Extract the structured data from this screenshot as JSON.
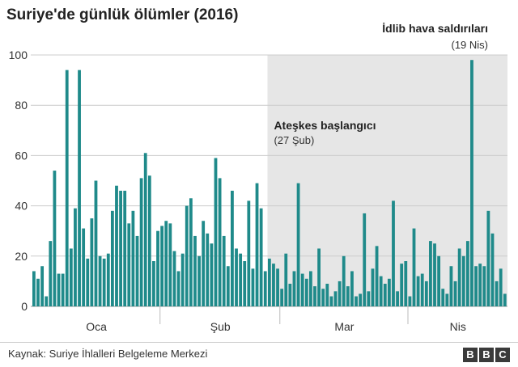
{
  "title": "Suriye'de günlük ölümler (2016)",
  "source": "Kaynak: Suriye İhlalleri Belgeleme Merkezi",
  "logo": [
    "B",
    "B",
    "C"
  ],
  "colors": {
    "bar": "#1f8a8a",
    "shade": "#e6e6e6",
    "grid": "#cccccc"
  },
  "chart_data": {
    "type": "bar",
    "title": "Suriye'de günlük ölümler (2016)",
    "xlabel": "",
    "ylabel": "",
    "ylim": [
      0,
      100
    ],
    "yticks": [
      0,
      20,
      40,
      60,
      80,
      100
    ],
    "month_labels": [
      "Oca",
      "Şub",
      "Mar",
      "Nis"
    ],
    "values": [
      14,
      11,
      16,
      4,
      26,
      54,
      13,
      13,
      94,
      23,
      39,
      94,
      31,
      19,
      35,
      50,
      20,
      19,
      21,
      38,
      48,
      46,
      46,
      33,
      38,
      28,
      51,
      61,
      52,
      18,
      30,
      32,
      34,
      33,
      22,
      14,
      21,
      40,
      43,
      28,
      20,
      34,
      29,
      25,
      59,
      51,
      28,
      16,
      46,
      23,
      21,
      18,
      42,
      15,
      49,
      39,
      14,
      19,
      17,
      15,
      7,
      21,
      9,
      14,
      49,
      13,
      11,
      14,
      8,
      23,
      7,
      9,
      4,
      6,
      10,
      20,
      8,
      14,
      4,
      5,
      37,
      6,
      15,
      24,
      12,
      9,
      11,
      42,
      6,
      17,
      18,
      4,
      31,
      12,
      13,
      10,
      26,
      25,
      20,
      7,
      5,
      16,
      10,
      23,
      20,
      26,
      98,
      16,
      17,
      16,
      38,
      29,
      10,
      15,
      5
    ],
    "annotations": [
      {
        "label": "Ateşkes başlangıcı",
        "sub": "(27 Şub)"
      },
      {
        "label": "İdlib hava saldırıları",
        "sub": "(19 Nis)"
      }
    ]
  }
}
